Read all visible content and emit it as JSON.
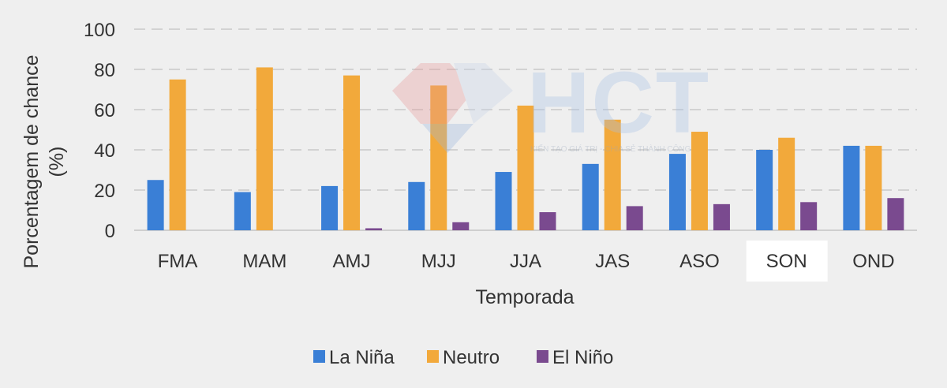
{
  "chart_data": {
    "type": "bar",
    "categories": [
      "FMA",
      "MAM",
      "AMJ",
      "MJJ",
      "JJA",
      "JAS",
      "ASO",
      "SON",
      "OND"
    ],
    "series": [
      {
        "name": "La Niña",
        "color": "#3a7fd6",
        "values": [
          25,
          19,
          22,
          24,
          29,
          33,
          38,
          40,
          42
        ]
      },
      {
        "name": "Neutro",
        "color": "#f2a93b",
        "values": [
          75,
          81,
          77,
          72,
          62,
          55,
          49,
          46,
          42
        ]
      },
      {
        "name": "El Niño",
        "color": "#7a4a8f",
        "values": [
          0,
          0,
          1,
          4,
          9,
          12,
          13,
          14,
          16
        ]
      }
    ],
    "xlabel": "Temporada",
    "ylabel_line1": "Porcentagem de chance",
    "ylabel_line2": "(%)",
    "ylim": [
      0,
      100
    ],
    "yticks": [
      0,
      20,
      40,
      60,
      80,
      100
    ],
    "grid": true,
    "legend_position": "bottom-center",
    "highlighted_category": "SON"
  },
  "watermark": {
    "brand": "HCT",
    "tagline": "KIẾN TẠO GIÁ TRỊ - CHIA SẺ THÀNH CÔNG"
  }
}
